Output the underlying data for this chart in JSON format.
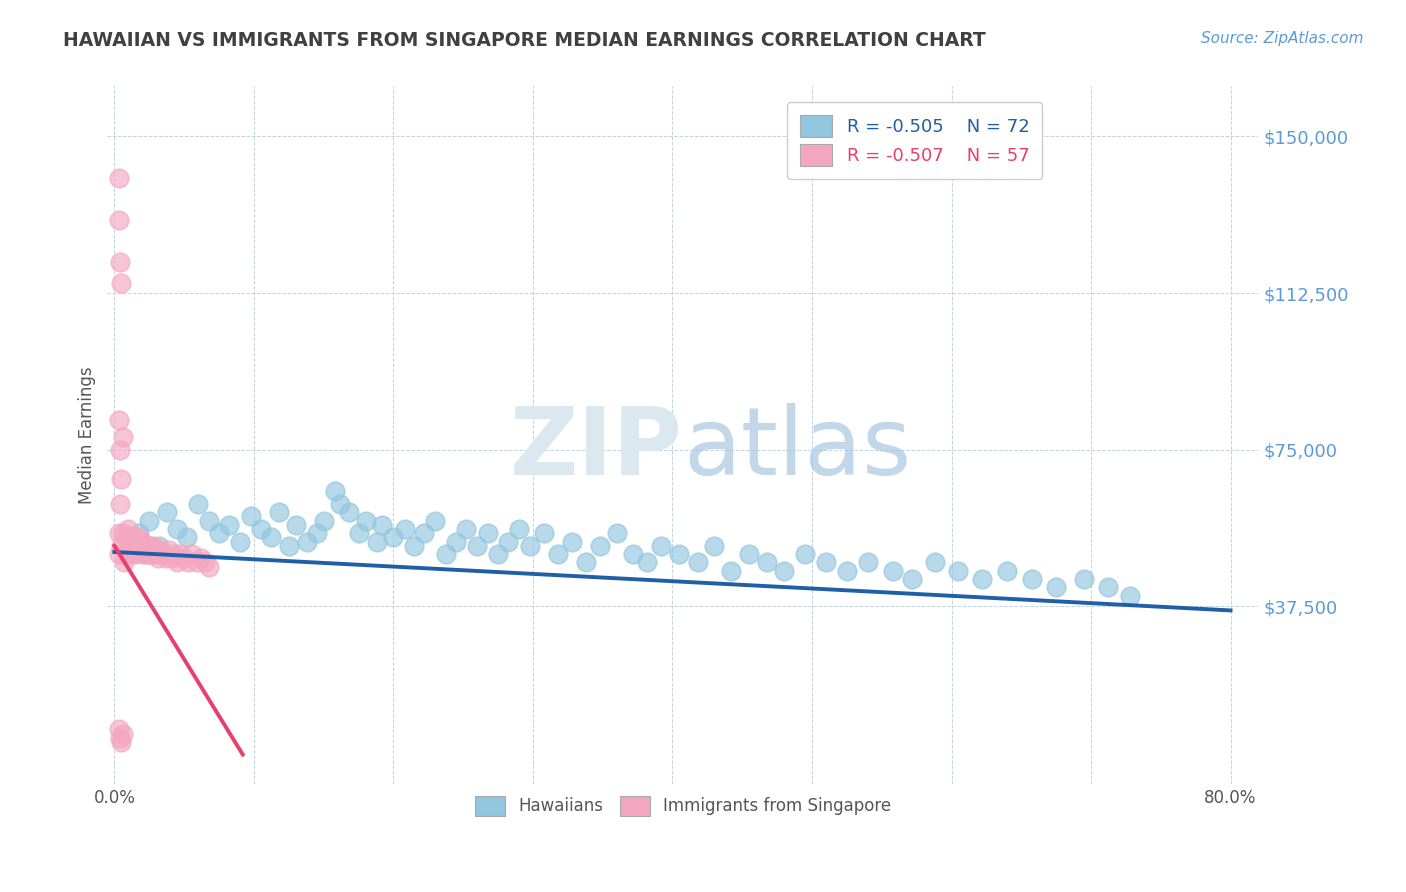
{
  "title": "HAWAIIAN VS IMMIGRANTS FROM SINGAPORE MEDIAN EARNINGS CORRELATION CHART",
  "source_text": "Source: ZipAtlas.com",
  "ylabel": "Median Earnings",
  "ytick_labels": [
    "$37,500",
    "$75,000",
    "$112,500",
    "$150,000"
  ],
  "ytick_values": [
    37500,
    75000,
    112500,
    150000
  ],
  "ylim": [
    -5000,
    162000
  ],
  "xlim": [
    -0.005,
    0.82
  ],
  "legend_blue_r": "R = -0.505",
  "legend_blue_n": "N = 72",
  "legend_pink_r": "R = -0.507",
  "legend_pink_n": "N = 57",
  "blue_color": "#92c5de",
  "pink_color": "#f4a6c0",
  "blue_line_color": "#1f5fa6",
  "pink_line_color": "#e8406a",
  "title_color": "#404040",
  "axis_tick_color": "#5b9bd5",
  "source_color": "#5b9bd5",
  "background_color": "#ffffff",
  "watermark_color": "#dce8f0",
  "xtick_positions": [
    0.0,
    0.1,
    0.2,
    0.3,
    0.4,
    0.5,
    0.6,
    0.7,
    0.8
  ],
  "blue_scatter_x": [
    0.018,
    0.025,
    0.032,
    0.038,
    0.045,
    0.052,
    0.06,
    0.068,
    0.075,
    0.082,
    0.09,
    0.098,
    0.105,
    0.112,
    0.118,
    0.125,
    0.13,
    0.138,
    0.145,
    0.15,
    0.158,
    0.162,
    0.168,
    0.175,
    0.18,
    0.188,
    0.192,
    0.2,
    0.208,
    0.215,
    0.222,
    0.23,
    0.238,
    0.245,
    0.252,
    0.26,
    0.268,
    0.275,
    0.282,
    0.29,
    0.298,
    0.308,
    0.318,
    0.328,
    0.338,
    0.348,
    0.36,
    0.372,
    0.382,
    0.392,
    0.405,
    0.418,
    0.43,
    0.442,
    0.455,
    0.468,
    0.48,
    0.495,
    0.51,
    0.525,
    0.54,
    0.558,
    0.572,
    0.588,
    0.605,
    0.622,
    0.64,
    0.658,
    0.675,
    0.695,
    0.712,
    0.728
  ],
  "blue_scatter_y": [
    55000,
    58000,
    52000,
    60000,
    56000,
    54000,
    62000,
    58000,
    55000,
    57000,
    53000,
    59000,
    56000,
    54000,
    60000,
    52000,
    57000,
    53000,
    55000,
    58000,
    65000,
    62000,
    60000,
    55000,
    58000,
    53000,
    57000,
    54000,
    56000,
    52000,
    55000,
    58000,
    50000,
    53000,
    56000,
    52000,
    55000,
    50000,
    53000,
    56000,
    52000,
    55000,
    50000,
    53000,
    48000,
    52000,
    55000,
    50000,
    48000,
    52000,
    50000,
    48000,
    52000,
    46000,
    50000,
    48000,
    46000,
    50000,
    48000,
    46000,
    48000,
    46000,
    44000,
    48000,
    46000,
    44000,
    46000,
    44000,
    42000,
    44000,
    42000,
    40000
  ],
  "pink_scatter_x": [
    0.003,
    0.005,
    0.006,
    0.007,
    0.008,
    0.009,
    0.01,
    0.011,
    0.012,
    0.013,
    0.014,
    0.015,
    0.016,
    0.017,
    0.018,
    0.019,
    0.02,
    0.021,
    0.022,
    0.023,
    0.024,
    0.025,
    0.026,
    0.027,
    0.028,
    0.029,
    0.03,
    0.031,
    0.033,
    0.035,
    0.037,
    0.039,
    0.041,
    0.043,
    0.045,
    0.047,
    0.05,
    0.053,
    0.056,
    0.059,
    0.062,
    0.065,
    0.068,
    0.003,
    0.004,
    0.005,
    0.006,
    0.003,
    0.004,
    0.005,
    0.003,
    0.003,
    0.004,
    0.005,
    0.006,
    0.003,
    0.004
  ],
  "pink_scatter_y": [
    50000,
    52000,
    55000,
    48000,
    54000,
    50000,
    56000,
    52000,
    50000,
    54000,
    51000,
    53000,
    50000,
    52000,
    54000,
    51000,
    53000,
    50000,
    52000,
    50000,
    52000,
    50000,
    52000,
    50000,
    52000,
    50000,
    51000,
    49000,
    51000,
    50000,
    49000,
    51000,
    49000,
    50000,
    48000,
    50000,
    49000,
    48000,
    50000,
    48000,
    49000,
    48000,
    47000,
    8000,
    6000,
    5000,
    7000,
    130000,
    120000,
    115000,
    82000,
    140000,
    75000,
    68000,
    78000,
    55000,
    62000
  ]
}
